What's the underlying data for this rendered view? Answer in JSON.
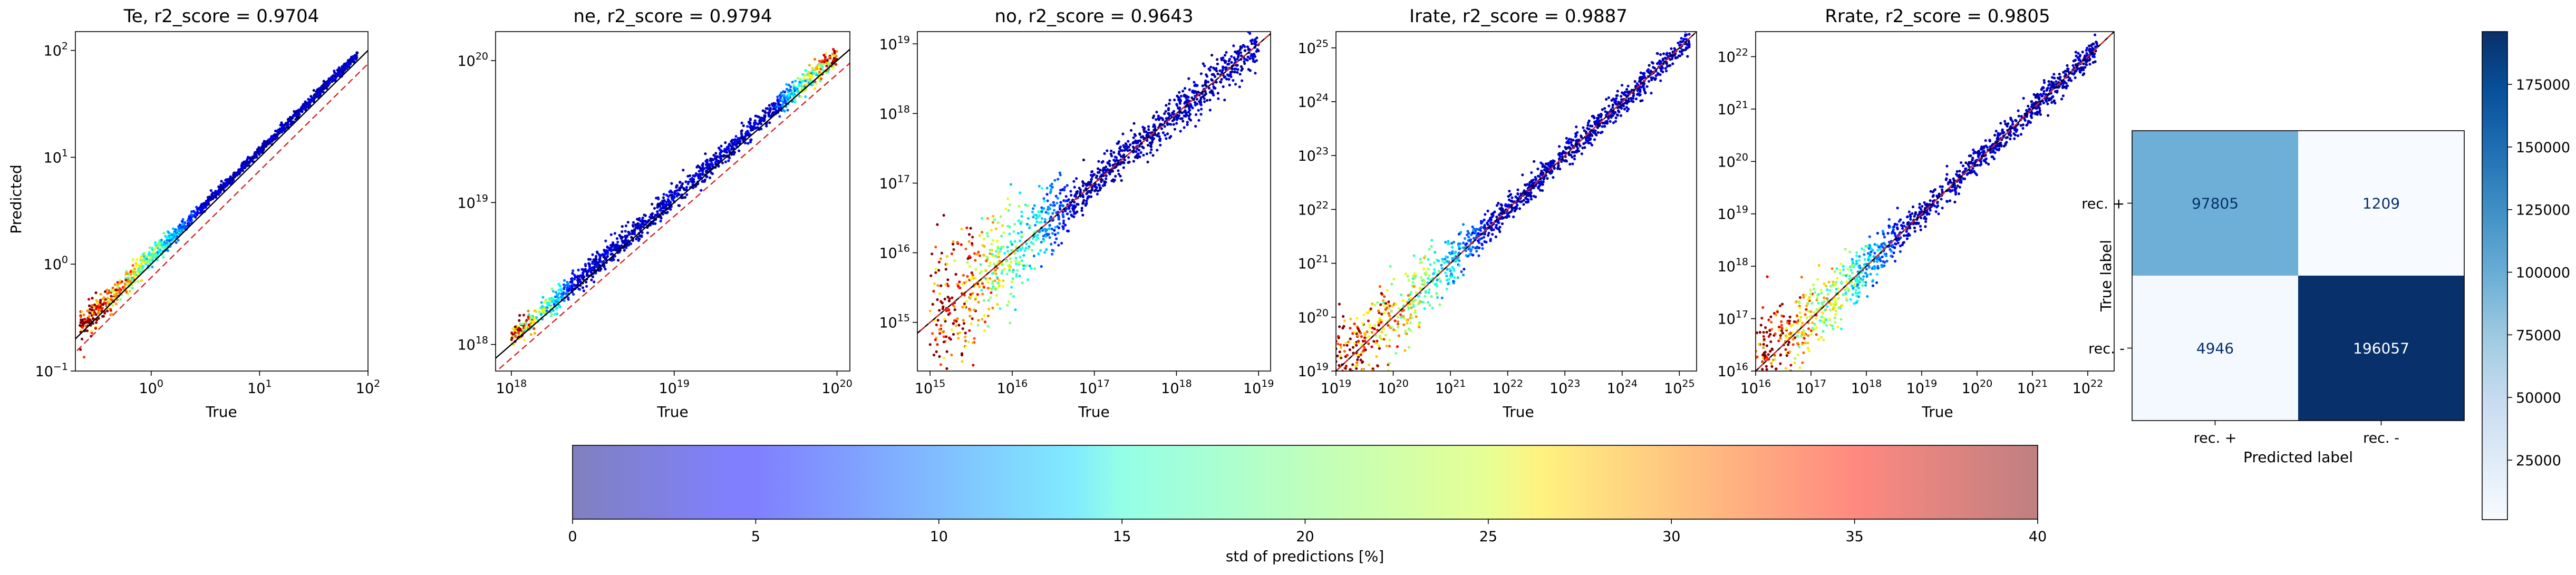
{
  "chart_data": [
    {
      "type": "scatter",
      "title": "Te, r2_score = 0.9704",
      "xlabel": "True",
      "ylabel": "Predicted",
      "xscale": "log",
      "yscale": "log",
      "xlim": [
        0.2,
        100
      ],
      "ylim": [
        0.1,
        150
      ],
      "x_tick_labels": [
        "10^0",
        "10^1",
        "10^2"
      ],
      "y_tick_labels": [
        "10^-1",
        "10^0",
        "10^1",
        "10^2"
      ],
      "true_range": [
        0.22,
        80
      ],
      "reference_lines": [
        "y = x (black)",
        "y = 0.75x (red dashed)"
      ],
      "prediction_ratio_median": 1.15,
      "spread_dex": 0.05,
      "high_std_points": "low values (< 0.4)"
    },
    {
      "type": "scatter",
      "title": "ne, r2_score = 0.9794",
      "xlabel": "True",
      "ylabel": "",
      "xscale": "log",
      "yscale": "log",
      "xlim": [
        8e+17,
        1.2e+20
      ],
      "ylim": [
        6.5e+17,
        1.6e+20
      ],
      "x_tick_labels": [
        "10^18",
        "10^19",
        "10^20"
      ],
      "y_tick_labels": [
        "10^18",
        "10^19",
        "10^20"
      ],
      "true_range": [
        1e+18,
        1e+20
      ],
      "reference_lines": [
        "y = x (black)",
        "y = 0.8x (red dashed)"
      ],
      "prediction_ratio_median": 1.1,
      "spread_dex": 0.04,
      "high_std_points": "extremes (near 1e18 and 1e20)"
    },
    {
      "type": "scatter",
      "title": "no, r2_score = 0.9643",
      "xlabel": "True",
      "ylabel": "",
      "xscale": "log",
      "yscale": "log",
      "xlim": [
        700000000000000.0,
        1.4e+19
      ],
      "ylim": [
        200000000000000.0,
        1.5e+19
      ],
      "x_tick_labels": [
        "10^15",
        "10^16",
        "10^17",
        "10^18",
        "10^19"
      ],
      "y_tick_labels": [
        "10^15",
        "10^16",
        "10^17",
        "10^18",
        "10^19"
      ],
      "true_range": [
        1000000000000000.0,
        1e+19
      ],
      "reference_lines": [
        "y = x (black)",
        "y = x (red dashed)"
      ],
      "prediction_ratio_median": 1.0,
      "spread_dex": 0.35,
      "high_std_points": "low values (< 1e16)"
    },
    {
      "type": "scatter",
      "title": "Irate, r2_score = 0.9887",
      "xlabel": "True",
      "ylabel": "",
      "xscale": "log",
      "yscale": "log",
      "xlim": [
        1e+19,
        2e+25
      ],
      "ylim": [
        1e+19,
        2e+25
      ],
      "x_tick_labels": [
        "10^19",
        "10^20",
        "10^21",
        "10^22",
        "10^23",
        "10^24",
        "10^25"
      ],
      "y_tick_labels": [
        "10^19",
        "10^20",
        "10^21",
        "10^22",
        "10^23",
        "10^24",
        "10^25"
      ],
      "true_range": [
        1e+19,
        1.5e+25
      ],
      "reference_lines": [
        "y = x (black)",
        "y = x (red dashed)"
      ],
      "prediction_ratio_median": 1.0,
      "spread_dex": 0.3,
      "high_std_points": "values below 1e22"
    },
    {
      "type": "scatter",
      "title": "Rrate, r2_score = 0.9805",
      "xlabel": "True",
      "ylabel": "",
      "xscale": "log",
      "yscale": "log",
      "xlim": [
        1e+16,
        3e+22
      ],
      "ylim": [
        1e+16,
        3e+22
      ],
      "x_tick_labels": [
        "10^16",
        "10^17",
        "10^18",
        "10^19",
        "10^20",
        "10^21",
        "10^22"
      ],
      "y_tick_labels": [
        "10^16",
        "10^17",
        "10^18",
        "10^19",
        "10^20",
        "10^21",
        "10^22"
      ],
      "true_range": [
        1e+16,
        1.5e+22
      ],
      "reference_lines": [
        "y = x (black)",
        "y = x (red dashed)"
      ],
      "prediction_ratio_median": 1.0,
      "spread_dex": 0.3,
      "high_std_points": "values below 1e19"
    },
    {
      "type": "heatmap",
      "title": "",
      "xlabel": "Predicted label",
      "ylabel": "True label",
      "x_categories": [
        "rec. +",
        "rec. -"
      ],
      "y_categories": [
        "rec. +",
        "rec. -"
      ],
      "values": [
        [
          97805,
          1209
        ],
        [
          4946,
          196057
        ]
      ],
      "colormap": "Blues",
      "colorbar_range": [
        1209,
        196057
      ],
      "colorbar_ticks": [
        "25000",
        "50000",
        "75000",
        "100000",
        "125000",
        "150000",
        "175000"
      ]
    },
    {
      "type": "colorbar",
      "label": "std of predictions [%]",
      "range": [
        0,
        40
      ],
      "ticks": [
        "0",
        "5",
        "10",
        "15",
        "20",
        "25",
        "30",
        "35",
        "40"
      ],
      "colormap": "jet",
      "alpha": 0.5
    }
  ],
  "colors": {
    "identity_line": "#000000",
    "reference_line": "#d62728",
    "cm_dark": "#08306b",
    "cm_light": "#f7fbff"
  }
}
